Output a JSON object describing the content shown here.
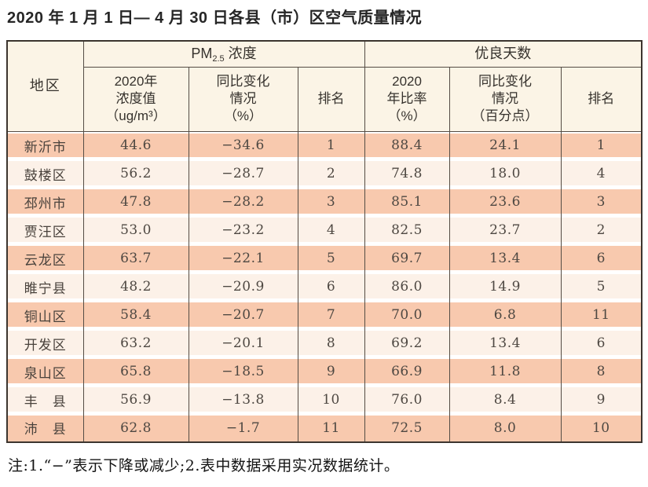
{
  "title": "2020 年 1 月 1 日— 4 月 30 日各县（市）区空气质量情况",
  "table": {
    "header": {
      "region": "地区",
      "pm_group_prefix": "PM",
      "pm_group_sub": "2.5",
      "pm_group_suffix": "浓度",
      "good_group": "优良天数",
      "pm_value": "2020年\n浓度值\n（ug/m³）",
      "pm_change": "同比变化\n情况\n（%）",
      "pm_rank": "排名",
      "good_ratio": "2020\n年比率\n（%）",
      "good_change": "同比变化\n情况\n（百分点）",
      "good_rank": "排名"
    },
    "rows": [
      {
        "region": "新沂市",
        "pm_value": "44.6",
        "pm_change": "−34.6",
        "pm_rank": "1",
        "good_ratio": "88.4",
        "good_change": "24.1",
        "good_rank": "1"
      },
      {
        "region": "鼓楼区",
        "pm_value": "56.2",
        "pm_change": "−28.7",
        "pm_rank": "2",
        "good_ratio": "74.8",
        "good_change": "18.0",
        "good_rank": "4"
      },
      {
        "region": "邳州市",
        "pm_value": "47.8",
        "pm_change": "−28.2",
        "pm_rank": "3",
        "good_ratio": "85.1",
        "good_change": "23.6",
        "good_rank": "3"
      },
      {
        "region": "贾汪区",
        "pm_value": "53.0",
        "pm_change": "−23.2",
        "pm_rank": "4",
        "good_ratio": "82.5",
        "good_change": "23.7",
        "good_rank": "2"
      },
      {
        "region": "云龙区",
        "pm_value": "63.7",
        "pm_change": "−22.1",
        "pm_rank": "5",
        "good_ratio": "69.7",
        "good_change": "13.4",
        "good_rank": "6"
      },
      {
        "region": "睢宁县",
        "pm_value": "48.2",
        "pm_change": "−20.9",
        "pm_rank": "6",
        "good_ratio": "86.0",
        "good_change": "14.9",
        "good_rank": "5"
      },
      {
        "region": "铜山区",
        "pm_value": "58.4",
        "pm_change": "−20.7",
        "pm_rank": "7",
        "good_ratio": "70.0",
        "good_change": "6.8",
        "good_rank": "11"
      },
      {
        "region": "开发区",
        "pm_value": "63.2",
        "pm_change": "−20.1",
        "pm_rank": "8",
        "good_ratio": "69.2",
        "good_change": "13.4",
        "good_rank": "6"
      },
      {
        "region": "泉山区",
        "pm_value": "65.8",
        "pm_change": "−18.5",
        "pm_rank": "9",
        "good_ratio": "66.9",
        "good_change": "11.8",
        "good_rank": "8"
      },
      {
        "region": "丰　县",
        "pm_value": "56.9",
        "pm_change": "−13.8",
        "pm_rank": "10",
        "good_ratio": "76.0",
        "good_change": "8.4",
        "good_rank": "9"
      },
      {
        "region": "沛　县",
        "pm_value": "62.8",
        "pm_change": "−1.7",
        "pm_rank": "11",
        "good_ratio": "72.5",
        "good_change": "8.0",
        "good_rank": "10"
      }
    ]
  },
  "note": "注:1.“−”表示下降或减少;2.表中数据采用实况数据统计。",
  "colors": {
    "row_peach": "#f8c9ae",
    "row_light": "#fcf1e8",
    "header_cream": "#fbf4e6",
    "border_dark": "#3c352f",
    "border_inner": "#544c44"
  }
}
